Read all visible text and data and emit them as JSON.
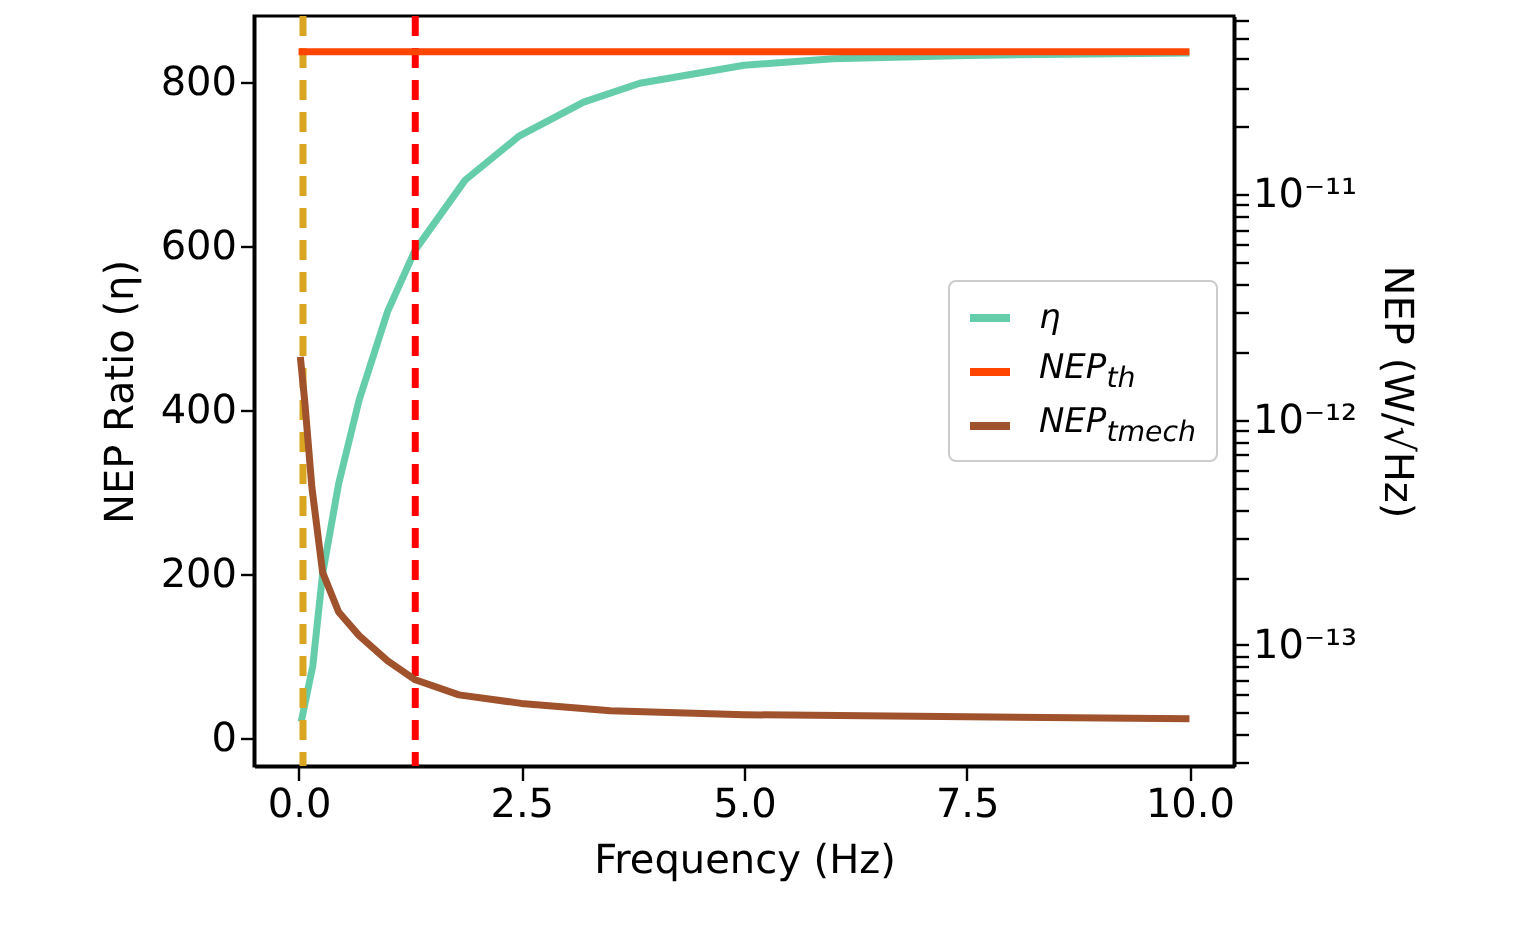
{
  "chart_data": {
    "type": "line",
    "xlabel": "Frequency (Hz)",
    "ylabel": "NEP Ratio (η)",
    "y2label": "NEP (W/√Hz)",
    "xlim": [
      -0.5,
      10.5
    ],
    "xticks": [
      {
        "value": 0,
        "label": "0.0"
      },
      {
        "value": 2.5,
        "label": "2.5"
      },
      {
        "value": 5,
        "label": "5.0"
      },
      {
        "value": 7.5,
        "label": "7.5"
      },
      {
        "value": 10,
        "label": "10.0"
      }
    ],
    "ylim": [
      -34,
      880
    ],
    "yticks": [
      0,
      200,
      400,
      600,
      800
    ],
    "y2lim": [
      2.9e-14,
      6.2e-11
    ],
    "log": "y2",
    "y2ticks": [
      {
        "value": 3e-14,
        "label": null
      },
      {
        "value": 4e-14,
        "label": null
      },
      {
        "value": 5e-14,
        "label": null
      },
      {
        "value": 6e-14,
        "label": null
      },
      {
        "value": 7e-14,
        "label": null
      },
      {
        "value": 8e-14,
        "label": null
      },
      {
        "value": 9e-14,
        "label": null
      },
      {
        "value": 1e-13,
        "label": "10⁻¹³"
      },
      {
        "value": 2e-13,
        "label": null
      },
      {
        "value": 3e-13,
        "label": null
      },
      {
        "value": 4e-13,
        "label": null
      },
      {
        "value": 5e-13,
        "label": null
      },
      {
        "value": 6e-13,
        "label": null
      },
      {
        "value": 7e-13,
        "label": null
      },
      {
        "value": 8e-13,
        "label": null
      },
      {
        "value": 9e-13,
        "label": null
      },
      {
        "value": 1e-12,
        "label": "10⁻¹²"
      },
      {
        "value": 2e-12,
        "label": null
      },
      {
        "value": 3e-12,
        "label": null
      },
      {
        "value": 4e-12,
        "label": null
      },
      {
        "value": 5e-12,
        "label": null
      },
      {
        "value": 6e-12,
        "label": null
      },
      {
        "value": 7e-12,
        "label": null
      },
      {
        "value": 8e-12,
        "label": null
      },
      {
        "value": 9e-12,
        "label": null
      },
      {
        "value": 1e-11,
        "label": "10⁻¹¹"
      },
      {
        "value": 2e-11,
        "label": null
      },
      {
        "value": 3e-11,
        "label": null
      },
      {
        "value": 4e-11,
        "label": null
      },
      {
        "value": 5e-11,
        "label": null
      },
      {
        "value": 6e-11,
        "label": null
      }
    ],
    "legend": "right",
    "marker": "none",
    "series": [
      {
        "name": "η",
        "color": "#66cdaa",
        "x": [
          0.03,
          0.16,
          0.27,
          0.45,
          0.68,
          1.0,
          1.31,
          1.87,
          2.48,
          3.2,
          3.83,
          5,
          6,
          7.5,
          10
        ],
        "values": [
          20,
          88,
          200,
          310,
          412,
          520,
          595,
          680,
          734,
          775,
          798,
          820,
          828,
          832,
          835
        ]
      },
      {
        "name": "NEP$_{th}$",
        "color": "#ff4500",
        "axis": "y2",
        "x": [
          0,
          10
        ],
        "values": [
          4.3e-11,
          4.3e-11
        ]
      },
      {
        "name": "NEP$_{tmech}$",
        "color": "#a0522d",
        "axis": "y2",
        "x": [
          0.02,
          0.07,
          0.15,
          0.27,
          0.45,
          0.68,
          1.0,
          1.31,
          1.8,
          2.5,
          3.5,
          5,
          10
        ],
        "values": [
          1.9e-12,
          1.2e-12,
          5e-13,
          2.1e-13,
          1.4e-13,
          1.1e-13,
          8.5e-14,
          7e-14,
          6e-14,
          5.5e-14,
          5.1e-14,
          4.9e-14,
          4.7e-14
        ]
      }
    ],
    "ref_lines": [
      {
        "axis": "x",
        "value": 0.05,
        "color": "#daa520",
        "line_style": "dashed"
      },
      {
        "axis": "x",
        "value": 1.31,
        "color": "#ff0000",
        "line_style": "dashed"
      }
    ]
  }
}
